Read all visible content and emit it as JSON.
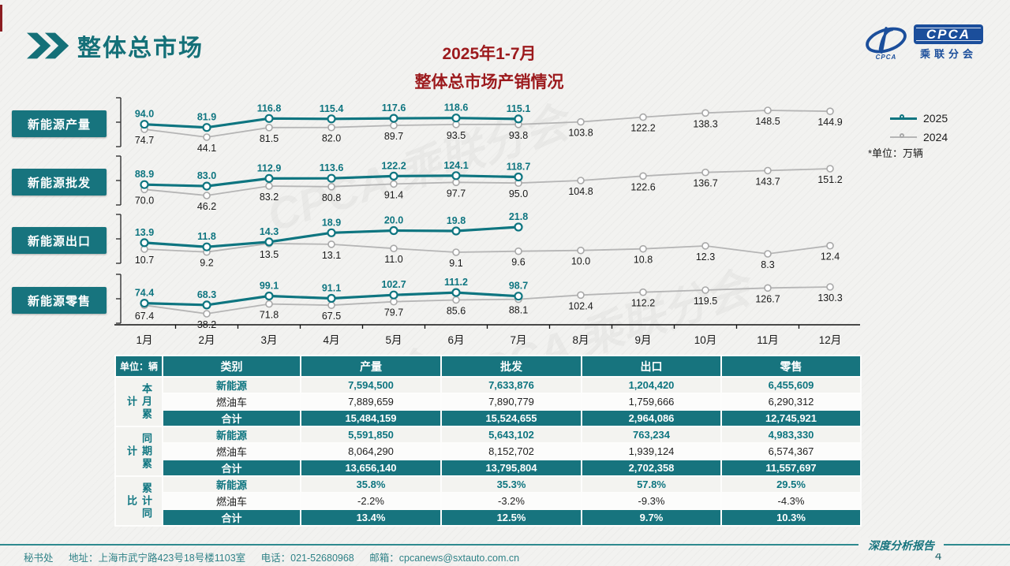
{
  "page": {
    "title": "整体总市场",
    "chart_title_line1": "2025年1-7月",
    "chart_title_line2": "整体总市场产销情况",
    "unit_note": "*单位：万辆",
    "page_number": "4"
  },
  "logo": {
    "acronym": "CPCA",
    "org": "乘联分会",
    "swoosh_text": "CPCA"
  },
  "legend": [
    {
      "label": "2025",
      "color": "#0E7580"
    },
    {
      "label": "2024",
      "color": "#B5B5B5"
    }
  ],
  "months": [
    "1月",
    "2月",
    "3月",
    "4月",
    "5月",
    "6月",
    "7月",
    "8月",
    "9月",
    "10月",
    "11月",
    "12月"
  ],
  "chart_data": [
    {
      "type": "line",
      "title": "新能源产量",
      "unit": "万辆",
      "series": [
        {
          "name": "2025",
          "values": [
            94.0,
            81.9,
            116.8,
            115.4,
            117.6,
            118.6,
            115.1
          ]
        },
        {
          "name": "2024",
          "values": [
            74.7,
            44.1,
            81.5,
            82.0,
            89.7,
            93.5,
            93.8,
            103.8,
            122.2,
            138.3,
            148.5,
            144.9
          ]
        }
      ]
    },
    {
      "type": "line",
      "title": "新能源批发",
      "unit": "万辆",
      "series": [
        {
          "name": "2025",
          "values": [
            88.9,
            83.0,
            112.9,
            113.6,
            122.2,
            124.1,
            118.7
          ]
        },
        {
          "name": "2024",
          "values": [
            70.0,
            46.2,
            83.2,
            80.8,
            91.4,
            97.7,
            95.0,
            104.8,
            122.6,
            136.7,
            143.7,
            151.2
          ]
        }
      ]
    },
    {
      "type": "line",
      "title": "新能源出口",
      "unit": "万辆",
      "series": [
        {
          "name": "2025",
          "values": [
            13.9,
            11.8,
            14.3,
            18.9,
            20.0,
            19.8,
            21.8
          ]
        },
        {
          "name": "2024",
          "values": [
            10.7,
            9.2,
            13.5,
            13.1,
            11.0,
            9.1,
            9.6,
            10.0,
            10.8,
            12.3,
            8.3,
            12.4
          ]
        }
      ]
    },
    {
      "type": "line",
      "title": "新能源零售",
      "unit": "万辆",
      "series": [
        {
          "name": "2025",
          "values": [
            74.4,
            68.3,
            99.1,
            91.1,
            102.7,
            111.2,
            98.7
          ]
        },
        {
          "name": "2024",
          "values": [
            67.4,
            38.2,
            71.8,
            67.5,
            79.7,
            85.6,
            88.1,
            102.4,
            112.2,
            119.5,
            126.7,
            130.3
          ]
        }
      ]
    }
  ],
  "table": {
    "unit_label": "单位：辆",
    "headers": [
      "类别",
      "产量",
      "批发",
      "出口",
      "零售"
    ],
    "groups": [
      {
        "label": "本月累计",
        "rows": [
          {
            "name": "新能源",
            "values": [
              "7,594,500",
              "7,633,876",
              "1,204,420",
              "6,455,609"
            ]
          },
          {
            "name": "燃油车",
            "values": [
              "7,889,659",
              "7,890,779",
              "1,759,666",
              "6,290,312"
            ]
          },
          {
            "name": "合计",
            "values": [
              "15,484,159",
              "15,524,655",
              "2,964,086",
              "12,745,921"
            ]
          }
        ]
      },
      {
        "label": "同期累计",
        "rows": [
          {
            "name": "新能源",
            "values": [
              "5,591,850",
              "5,643,102",
              "763,234",
              "4,983,330"
            ]
          },
          {
            "name": "燃油车",
            "values": [
              "8,064,290",
              "8,152,702",
              "1,939,124",
              "6,574,367"
            ]
          },
          {
            "name": "合计",
            "values": [
              "13,656,140",
              "13,795,804",
              "2,702,358",
              "11,557,697"
            ]
          }
        ]
      },
      {
        "label": "累计同比",
        "rows": [
          {
            "name": "新能源",
            "values": [
              "35.8%",
              "35.3%",
              "57.8%",
              "29.5%"
            ]
          },
          {
            "name": "燃油车",
            "values": [
              "-2.2%",
              "-3.2%",
              "-9.3%",
              "-4.3%"
            ]
          },
          {
            "name": "合计",
            "values": [
              "13.4%",
              "12.5%",
              "9.7%",
              "10.3%"
            ]
          }
        ]
      }
    ]
  },
  "footer": {
    "dept": "秘书处",
    "address": "地址：上海市武宁路423号18号楼1103室",
    "phone": "电话：021-52680968",
    "email": "邮箱：cpcanews@sxtauto.com.cn",
    "report_label": "深度分析报告"
  }
}
